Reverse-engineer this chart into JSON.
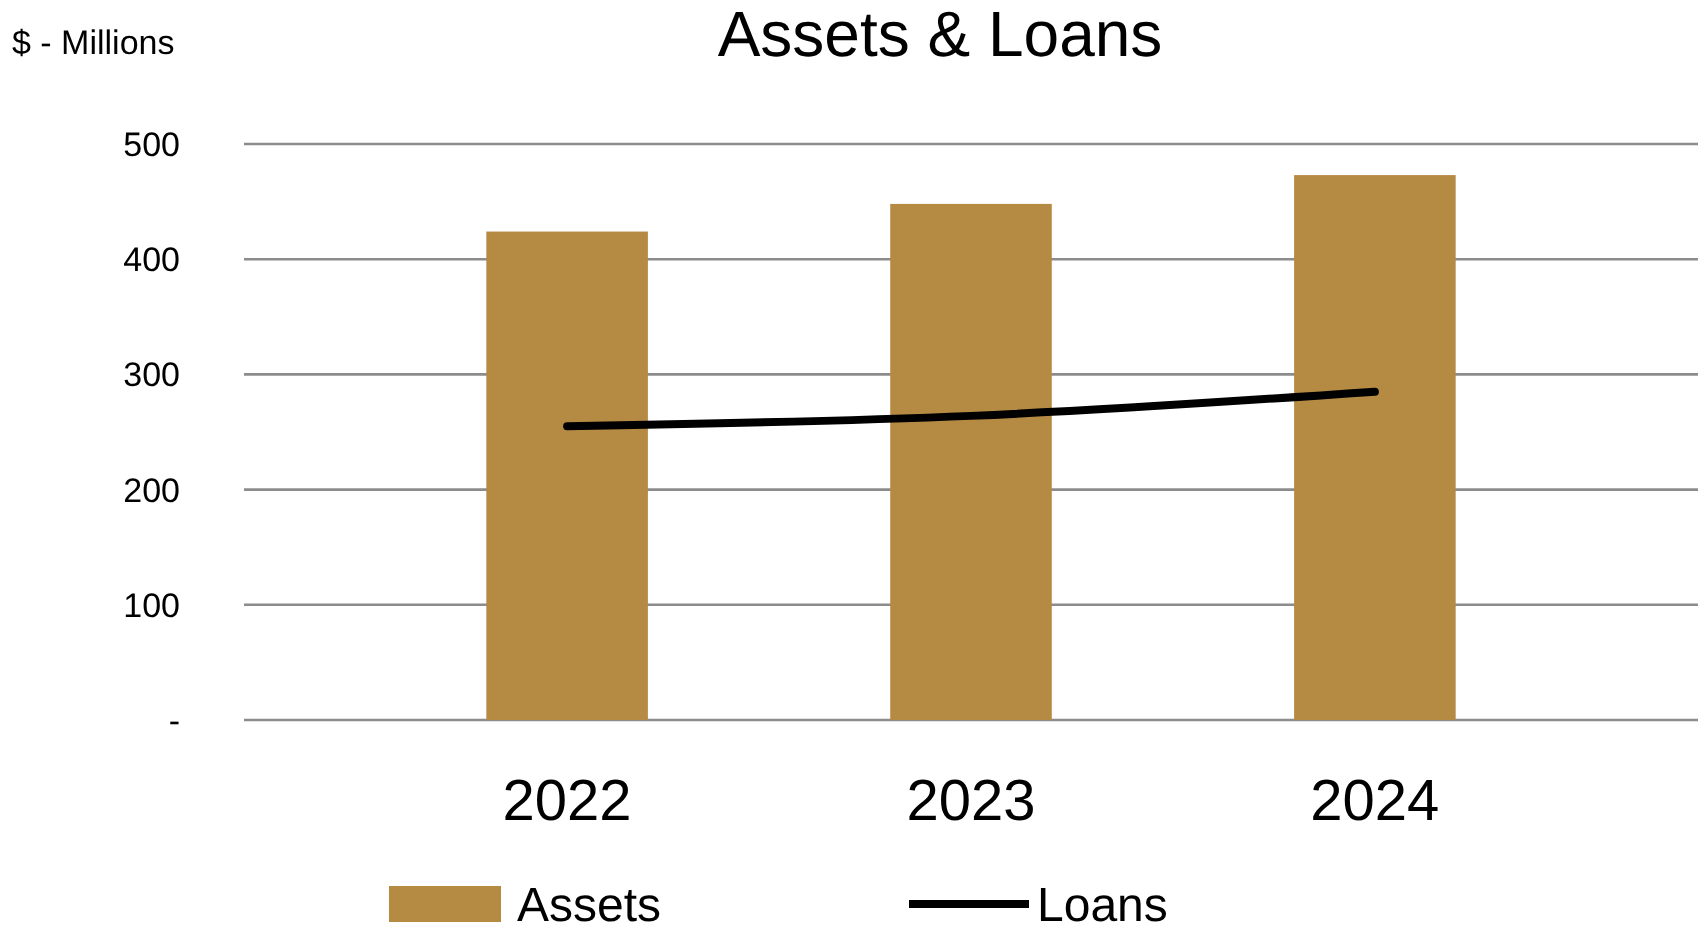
{
  "chart_data": {
    "type": "bar",
    "title": "Assets & Loans",
    "ylabel": "$ - Millions",
    "categories": [
      "2022",
      "2023",
      "2024"
    ],
    "series": [
      {
        "name": "Assets",
        "color": "#b58a43",
        "values": [
          424,
          448,
          473
        ]
      },
      {
        "name": "Loans",
        "type": "line",
        "color": "#000000",
        "values": [
          255,
          264,
          285
        ]
      }
    ],
    "ylim": [
      0,
      500
    ],
    "yticks": [
      {
        "value": 0,
        "label": "-"
      },
      100,
      200,
      300,
      400,
      500
    ],
    "grid": "y",
    "legend": "bottom",
    "marker": "none",
    "line_style": "solid"
  }
}
